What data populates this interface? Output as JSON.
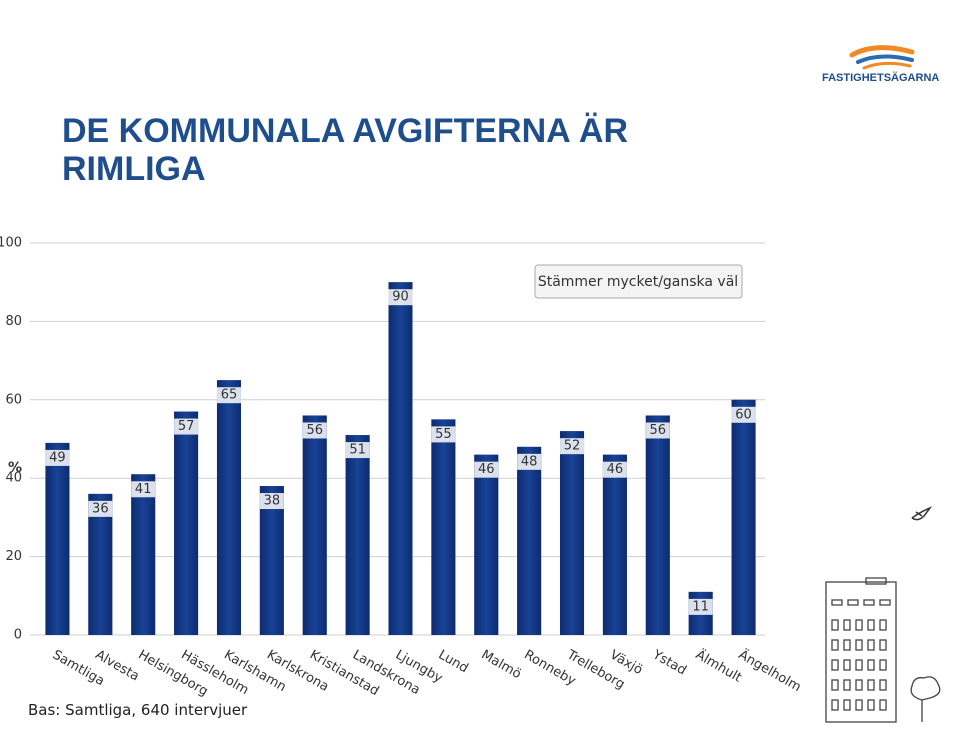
{
  "brand": "FASTIGHETSÄGARNA",
  "chart_data": {
    "type": "bar",
    "title": "DE KOMMUNALA AVGIFTERNA ÄR RIMLIGA",
    "y_label": "%",
    "note": "Bas: Samtliga, 640 intervjuer",
    "categories": [
      "Samtliga",
      "Alvesta",
      "Helsingborg",
      "Hässleholm",
      "Karlshamn",
      "Karlskrona",
      "Kristianstad",
      "Landskrona",
      "Ljungby",
      "Lund",
      "Malmö",
      "Ronneby",
      "Trelleborg",
      "Växjö",
      "Ystad",
      "Älmhult",
      "Ängelholm"
    ],
    "series": [
      {
        "name": "Stämmer mycket/ganska väl",
        "color": "#123a86",
        "values": [
          49,
          36,
          41,
          57,
          65,
          38,
          56,
          51,
          90,
          55,
          46,
          48,
          52,
          46,
          56,
          11,
          60
        ]
      }
    ],
    "ylim": [
      0,
      100
    ],
    "yticks": [
      0,
      20,
      40,
      60,
      80,
      100
    ],
    "grid": true
  }
}
